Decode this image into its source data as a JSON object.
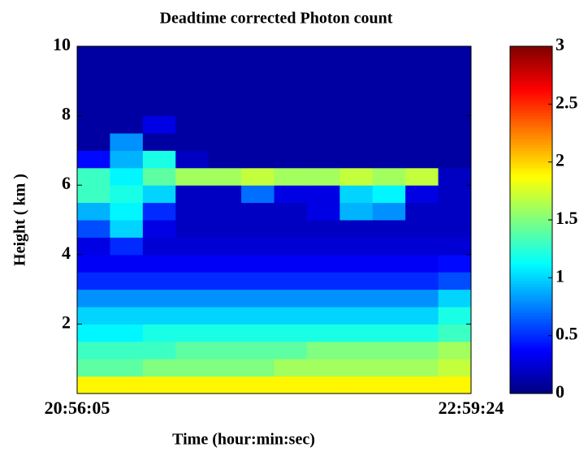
{
  "chart_data": {
    "type": "heatmap",
    "title": "Deadtime corrected Photon count",
    "x_label": "Time (hour:min:sec)",
    "y_label": "Height ( km )",
    "categories": [
      "20:56:05",
      null,
      null,
      null,
      null,
      null,
      null,
      null,
      null,
      null,
      null,
      "22:59:24"
    ],
    "y": [
      0.25,
      0.75,
      1.25,
      1.75,
      2.25,
      2.75,
      3.25,
      3.75,
      4.25,
      4.75,
      5.25,
      5.75,
      6.25,
      6.75,
      7.25,
      7.75,
      8.25,
      8.75,
      9.25,
      9.75
    ],
    "ylim": [
      0,
      10
    ],
    "yticks": [
      2,
      4,
      6,
      8,
      10
    ],
    "values": [
      [
        1.9,
        1.9,
        1.9,
        1.9,
        1.9,
        1.9,
        1.9,
        1.9,
        1.9,
        1.9,
        1.9,
        1.9
      ],
      [
        1.4,
        1.4,
        1.5,
        1.5,
        1.5,
        1.5,
        1.6,
        1.6,
        1.6,
        1.6,
        1.6,
        1.7
      ],
      [
        1.3,
        1.3,
        1.3,
        1.4,
        1.4,
        1.4,
        1.4,
        1.5,
        1.5,
        1.5,
        1.5,
        1.6
      ],
      [
        1.1,
        1.1,
        1.2,
        1.2,
        1.2,
        1.2,
        1.2,
        1.2,
        1.2,
        1.2,
        1.2,
        1.3
      ],
      [
        1,
        1,
        1,
        1,
        1,
        1,
        1,
        1,
        1,
        1,
        1,
        1.2
      ],
      [
        0.8,
        0.8,
        0.8,
        0.8,
        0.8,
        0.8,
        0.8,
        0.8,
        0.8,
        0.8,
        0.8,
        1
      ],
      [
        0.5,
        0.5,
        0.5,
        0.5,
        0.5,
        0.5,
        0.5,
        0.5,
        0.5,
        0.5,
        0.5,
        0.6
      ],
      [
        0.35,
        0.35,
        0.35,
        0.35,
        0.35,
        0.35,
        0.35,
        0.35,
        0.35,
        0.35,
        0.35,
        0.4
      ],
      [
        0.3,
        0.5,
        0.25,
        0.25,
        0.25,
        0.25,
        0.25,
        0.25,
        0.25,
        0.25,
        0.25,
        0.25
      ],
      [
        0.6,
        1,
        0.3,
        0.2,
        0.2,
        0.2,
        0.2,
        0.2,
        0.2,
        0.2,
        0.2,
        0.2
      ],
      [
        0.9,
        1.1,
        0.5,
        0.2,
        0.2,
        0.2,
        0.2,
        0.3,
        0.9,
        0.8,
        0.2,
        0.2
      ],
      [
        1.3,
        1.2,
        1,
        0.2,
        0.2,
        0.7,
        0.3,
        0.3,
        1,
        1.1,
        0.3,
        0.2
      ],
      [
        1.3,
        1.1,
        1.4,
        1.6,
        1.6,
        1.7,
        1.6,
        1.6,
        1.7,
        1.6,
        1.7,
        0.2
      ],
      [
        0.4,
        0.9,
        1.2,
        0.2,
        0.1,
        0.1,
        0.1,
        0.1,
        0.1,
        0.1,
        0.1,
        0.1
      ],
      [
        0.1,
        0.8,
        0.1,
        0.1,
        0.1,
        0.1,
        0.1,
        0.1,
        0.1,
        0.1,
        0.1,
        0.1
      ],
      [
        0.1,
        0.1,
        0.3,
        0.1,
        0.1,
        0.1,
        0.1,
        0.1,
        0.1,
        0.1,
        0.1,
        0.1
      ],
      [
        0.1,
        0.1,
        0.1,
        0.1,
        0.1,
        0.1,
        0.1,
        0.1,
        0.1,
        0.1,
        0.1,
        0.1
      ],
      [
        0.1,
        0.1,
        0.1,
        0.1,
        0.1,
        0.1,
        0.1,
        0.1,
        0.1,
        0.1,
        0.1,
        0.1
      ],
      [
        0.1,
        0.1,
        0.1,
        0.1,
        0.1,
        0.1,
        0.1,
        0.1,
        0.1,
        0.1,
        0.1,
        0.1
      ],
      [
        0.1,
        0.1,
        0.1,
        0.1,
        0.1,
        0.1,
        0.1,
        0.1,
        0.1,
        0.1,
        0.1,
        0.1
      ]
    ],
    "colormap": "jet",
    "zlim": [
      0,
      3
    ],
    "zticks": [
      0,
      0.5,
      1,
      1.5,
      2,
      2.5,
      3
    ]
  }
}
